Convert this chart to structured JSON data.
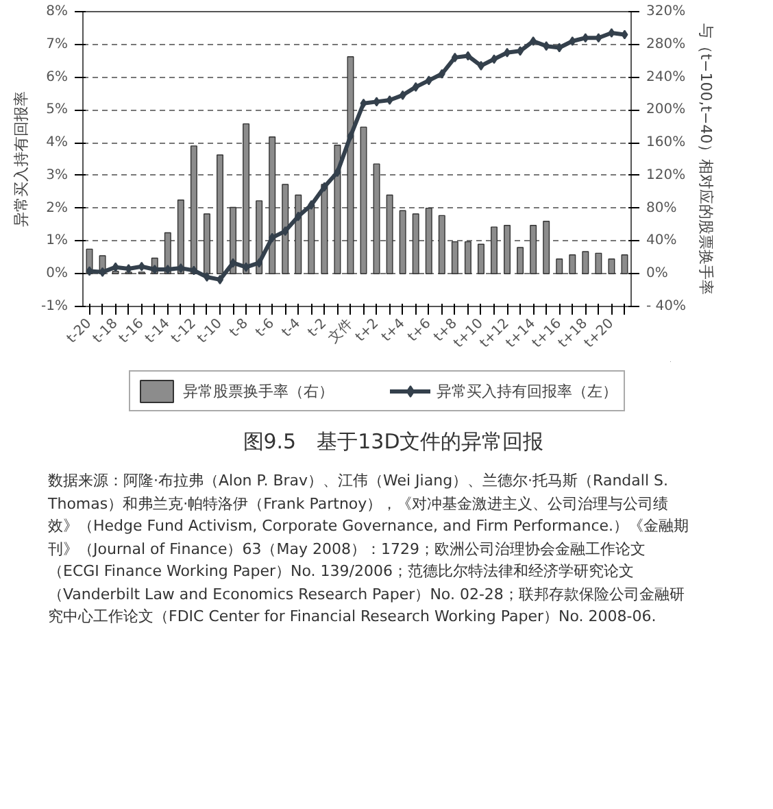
{
  "chart_data": {
    "type": "bar",
    "title": "图9.5　基于13D文件的异常回报",
    "ylabel": "异常买入持有回报率",
    "y2label": "与（t−100,t−40）相对应的股票换手率",
    "categories": [
      "t-20",
      null,
      "t-18",
      null,
      "t-16",
      null,
      "t-14",
      null,
      "t-12",
      null,
      "t-10",
      null,
      "t-8",
      null,
      "t-6",
      null,
      "t-4",
      null,
      "t-2",
      null,
      "文件",
      null,
      "t+2",
      null,
      "t+4",
      null,
      "t+6",
      null,
      "t+8",
      null,
      "t+10",
      null,
      "t+12",
      null,
      "t+14",
      null,
      "t+16",
      null,
      "t+18",
      null,
      "t+20",
      null
    ],
    "series": [
      {
        "name": "异常股票换手率（右）",
        "axis": "y2",
        "color": "#8c8c8c",
        "values": [
          30,
          22,
          3,
          2,
          2,
          19,
          50,
          90,
          156,
          73,
          145,
          81,
          183,
          89,
          167,
          109,
          96,
          84,
          109,
          157,
          265,
          179,
          134,
          96,
          77,
          73,
          80,
          71,
          39,
          39,
          36,
          57,
          59,
          32,
          59,
          64,
          18,
          23,
          27,
          25,
          18,
          23
        ]
      },
      {
        "name": "异常买入持有回报率（左）",
        "type": "line",
        "color": "#34404c",
        "values": [
          0.08,
          0.05,
          0.2,
          0.15,
          0.22,
          0.13,
          0.13,
          0.17,
          0.1,
          -0.1,
          -0.18,
          0.33,
          0.2,
          0.33,
          1.1,
          1.3,
          1.75,
          2.1,
          2.65,
          3.1,
          4.2,
          5.2,
          5.25,
          5.3,
          5.45,
          5.7,
          5.9,
          6.1,
          6.6,
          6.65,
          6.35,
          6.55,
          6.75,
          6.8,
          7.1,
          6.95,
          6.9,
          7.1,
          7.2,
          7.2,
          7.35,
          7.3
        ]
      }
    ],
    "ylim": [
      -1,
      8
    ],
    "yticks": [
      {
        "value": -1,
        "label": "-1%"
      },
      {
        "value": 0,
        "label": "0%"
      },
      {
        "value": 1,
        "label": "1%"
      },
      {
        "value": 2,
        "label": "2%"
      },
      {
        "value": 3,
        "label": "3%"
      },
      {
        "value": 4,
        "label": "4%"
      },
      {
        "value": 5,
        "label": "5%"
      },
      {
        "value": 6,
        "label": "6%"
      },
      {
        "value": 7,
        "label": "7%"
      },
      {
        "value": 8,
        "label": "8%"
      }
    ],
    "y2lim": [
      -40,
      320
    ],
    "y2ticks": [
      {
        "value": -40,
        "label": "- 40%"
      },
      {
        "value": 0,
        "label": "0%"
      },
      {
        "value": 40,
        "label": "40%"
      },
      {
        "value": 80,
        "label": "80%"
      },
      {
        "value": 120,
        "label": "120%"
      },
      {
        "value": 160,
        "label": "160%"
      },
      {
        "value": 200,
        "label": "200%"
      },
      {
        "value": 240,
        "label": "240%"
      },
      {
        "value": 280,
        "label": "280%"
      },
      {
        "value": 320,
        "label": "320%"
      }
    ],
    "grid": "y",
    "legend": "bottom",
    "marker": "diamond",
    "line_style": "solid",
    "annotations": [
      "数据来源：阿隆·布拉弗（Alon P. Brav）、江伟（Wei Jiang）、兰德尔·托马斯（Randall S. Thomas）和弗兰克·帕特洛伊（Frank Partnoy），《对冲基金激进主义、公司治理与公司绩效》（Hedge Fund Activism, Corporate Governance, and Firm Performance.）《金融期刊》（Journal of Finance）63（May 2008）：1729；欧洲公司治理协会金融工作论文（ECGI Finance Working Paper）No. 139/2006；范德比尔特法律和经济学研究论文（Vanderbilt Law and Economics Research Paper）No. 02-28；联邦存款保险公司金融研究中心工作论文（FDIC Center for Financial Research Working Paper）No. 2008-06."
    ]
  }
}
